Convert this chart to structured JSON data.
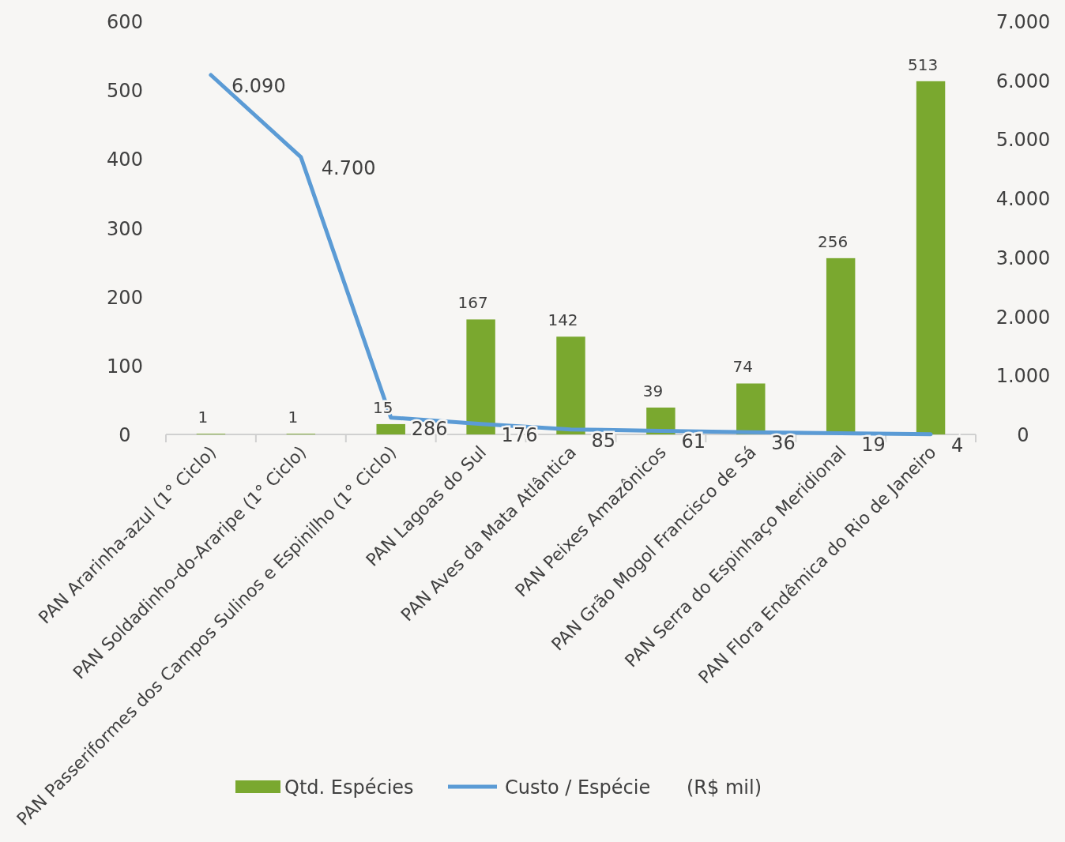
{
  "chart_data": {
    "type": "bar",
    "categories": [
      "PAN Ararinha-azul (1° Ciclo)",
      "PAN Soldadinho-do-Araripe (1° Ciclo)",
      "PAN Passeriformes dos Campos Sulinos e Espinilho (1° Ciclo)",
      "PAN Lagoas do Sul",
      "PAN Aves da Mata Atlântica",
      "PAN Peixes Amazônicos",
      "PAN Grão Mogol Francisco de Sá",
      "PAN Serra do Espinhaço Meridional",
      "PAN Flora Endêmica do Rio de Janeiro"
    ],
    "series": [
      {
        "name": "Qtd. Espécies",
        "color": "#7aa82f",
        "values": [
          1,
          1,
          15,
          167,
          142,
          39,
          74,
          256,
          513
        ]
      },
      {
        "name": "Custo / Espécie      (R$ mil)",
        "type": "line",
        "axis": "y2",
        "color": "#5b9bd5",
        "values": [
          6090,
          4700,
          286,
          176,
          85,
          61,
          36,
          19,
          4
        ],
        "value_labels": [
          "6.090",
          "4.700",
          "286",
          "176",
          "85",
          "61",
          "36",
          "19",
          "4"
        ]
      }
    ],
    "ylim": [
      0,
      600
    ],
    "yticks": [
      0,
      100,
      200,
      300,
      400,
      500,
      600
    ],
    "y2lim": [
      0,
      7000
    ],
    "y2ticks": [
      0,
      {
        "value": 1000,
        "label": "1.000"
      },
      {
        "value": 2000,
        "label": "2.000"
      },
      {
        "value": 3000,
        "label": "3.000"
      },
      {
        "value": 4000,
        "label": "4.000"
      },
      {
        "value": 5000,
        "label": "5.000"
      },
      {
        "value": 6000,
        "label": "6.000"
      },
      {
        "value": 7000,
        "label": "7.000"
      }
    ],
    "data_labels": true,
    "grid": false,
    "legend": "bottom",
    "marker": "none"
  }
}
